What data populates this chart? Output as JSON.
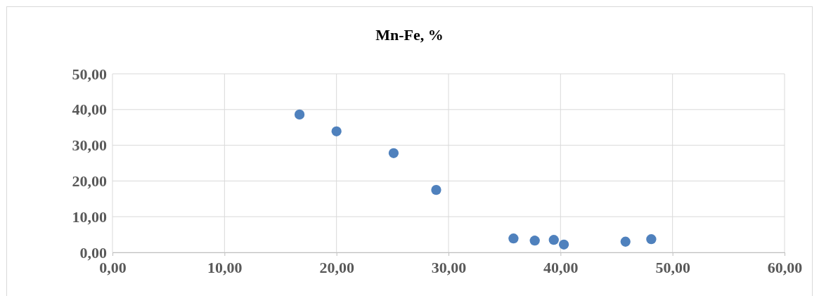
{
  "chart_data": {
    "type": "scatter",
    "title": "Mn-Fe, %",
    "x": [
      16.7,
      20.0,
      25.1,
      28.9,
      35.8,
      37.7,
      39.4,
      40.3,
      45.8,
      48.1
    ],
    "series": [
      {
        "color": "#4f81bd",
        "values": [
          38.6,
          33.9,
          27.8,
          17.5,
          3.9,
          3.3,
          3.5,
          2.2,
          3.0,
          3.7
        ]
      }
    ],
    "xlim": [
      0,
      60
    ],
    "xticks": [
      {
        "value": 0,
        "label": "0,00"
      },
      {
        "value": 10,
        "label": "10,00"
      },
      {
        "value": 20,
        "label": "20,00"
      },
      {
        "value": 30,
        "label": "30,00"
      },
      {
        "value": 40,
        "label": "40,00"
      },
      {
        "value": 50,
        "label": "50,00"
      },
      {
        "value": 60,
        "label": "60,00"
      }
    ],
    "ylim": [
      0,
      50
    ],
    "yticks": [
      {
        "value": 0,
        "label": "0,00"
      },
      {
        "value": 10,
        "label": "10,00"
      },
      {
        "value": 20,
        "label": "20,00"
      },
      {
        "value": 30,
        "label": "30,00"
      },
      {
        "value": 40,
        "label": "40,00"
      },
      {
        "value": 50,
        "label": "50,00"
      }
    ],
    "grid": true,
    "marker": "circle"
  }
}
